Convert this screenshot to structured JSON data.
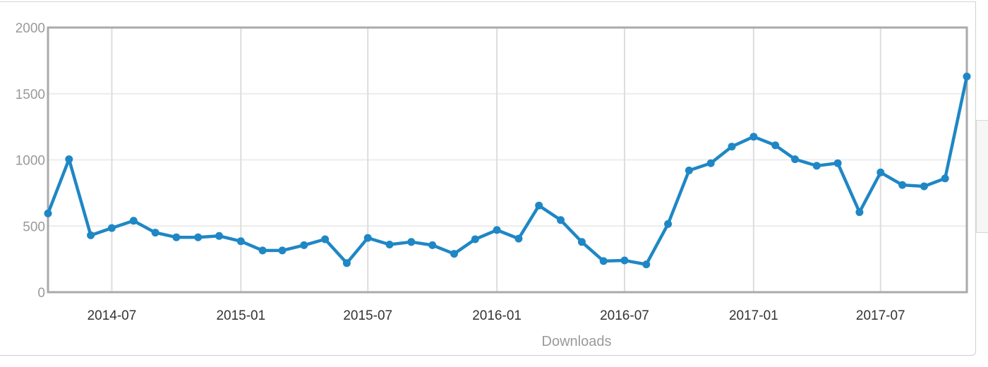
{
  "chart_data": {
    "type": "line",
    "title": "",
    "xlabel": "Downloads",
    "ylabel": "",
    "ylim": [
      0,
      2000
    ],
    "yticks": [
      "0",
      "500",
      "1000",
      "1500",
      "2000"
    ],
    "xticks": [
      "2014-07",
      "2015-01",
      "2015-07",
      "2016-01",
      "2016-07",
      "2017-01",
      "2017-07"
    ],
    "xticks_dates": [
      "2014-07-01",
      "2015-01-01",
      "2015-07-01",
      "2016-01-01",
      "2016-07-01",
      "2017-01-01",
      "2017-07-01"
    ],
    "xlim": [
      "2014-04-01",
      "2017-11-01"
    ],
    "grid": true,
    "line_color": "#1f87c5",
    "x": [
      "2014-04-01",
      "2014-05-01",
      "2014-06-01",
      "2014-07-01",
      "2014-08-01",
      "2014-09-01",
      "2014-10-01",
      "2014-11-01",
      "2014-12-01",
      "2015-01-01",
      "2015-02-01",
      "2015-03-01",
      "2015-04-01",
      "2015-05-01",
      "2015-06-01",
      "2015-07-01",
      "2015-08-01",
      "2015-09-01",
      "2015-10-01",
      "2015-11-01",
      "2015-12-01",
      "2016-01-01",
      "2016-02-01",
      "2016-03-01",
      "2016-04-01",
      "2016-05-01",
      "2016-06-01",
      "2016-07-01",
      "2016-08-01",
      "2016-09-01",
      "2016-10-01",
      "2016-11-01",
      "2016-12-01",
      "2017-01-01",
      "2017-02-01",
      "2017-03-01",
      "2017-04-01",
      "2017-05-01",
      "2017-06-01",
      "2017-07-01",
      "2017-08-01",
      "2017-09-01",
      "2017-10-01",
      "2017-11-01"
    ],
    "values": [
      595,
      1005,
      430,
      485,
      540,
      450,
      415,
      415,
      425,
      385,
      315,
      315,
      355,
      400,
      220,
      410,
      360,
      380,
      355,
      290,
      400,
      470,
      405,
      655,
      545,
      380,
      235,
      240,
      210,
      515,
      920,
      975,
      1100,
      1175,
      1110,
      1005,
      955,
      975,
      605,
      905,
      810,
      800,
      860,
      1630
    ]
  }
}
